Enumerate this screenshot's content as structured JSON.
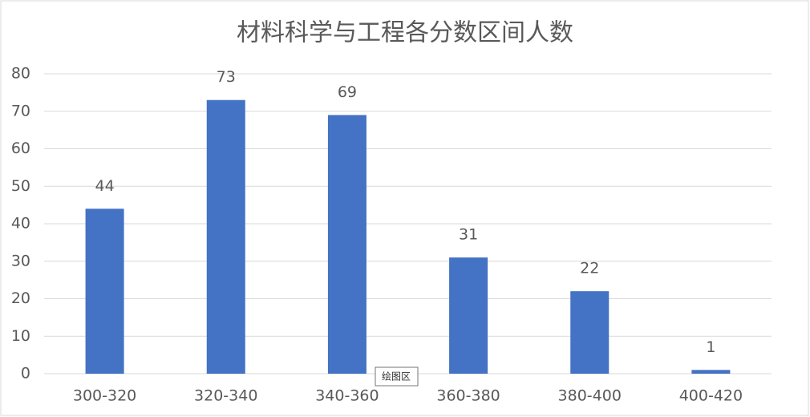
{
  "chart_data": {
    "type": "bar",
    "title": "材料科学与工程各分数区间人数",
    "categories": [
      "300-320",
      "320-340",
      "340-360",
      "360-380",
      "380-400",
      "400-420"
    ],
    "values": [
      44,
      73,
      69,
      31,
      22,
      1
    ],
    "color": "#4472c4",
    "ylim": [
      0,
      80
    ],
    "yticks": [
      0,
      10,
      20,
      30,
      40,
      50,
      60,
      70,
      80
    ],
    "grid": true,
    "tooltip": "绘图区"
  }
}
